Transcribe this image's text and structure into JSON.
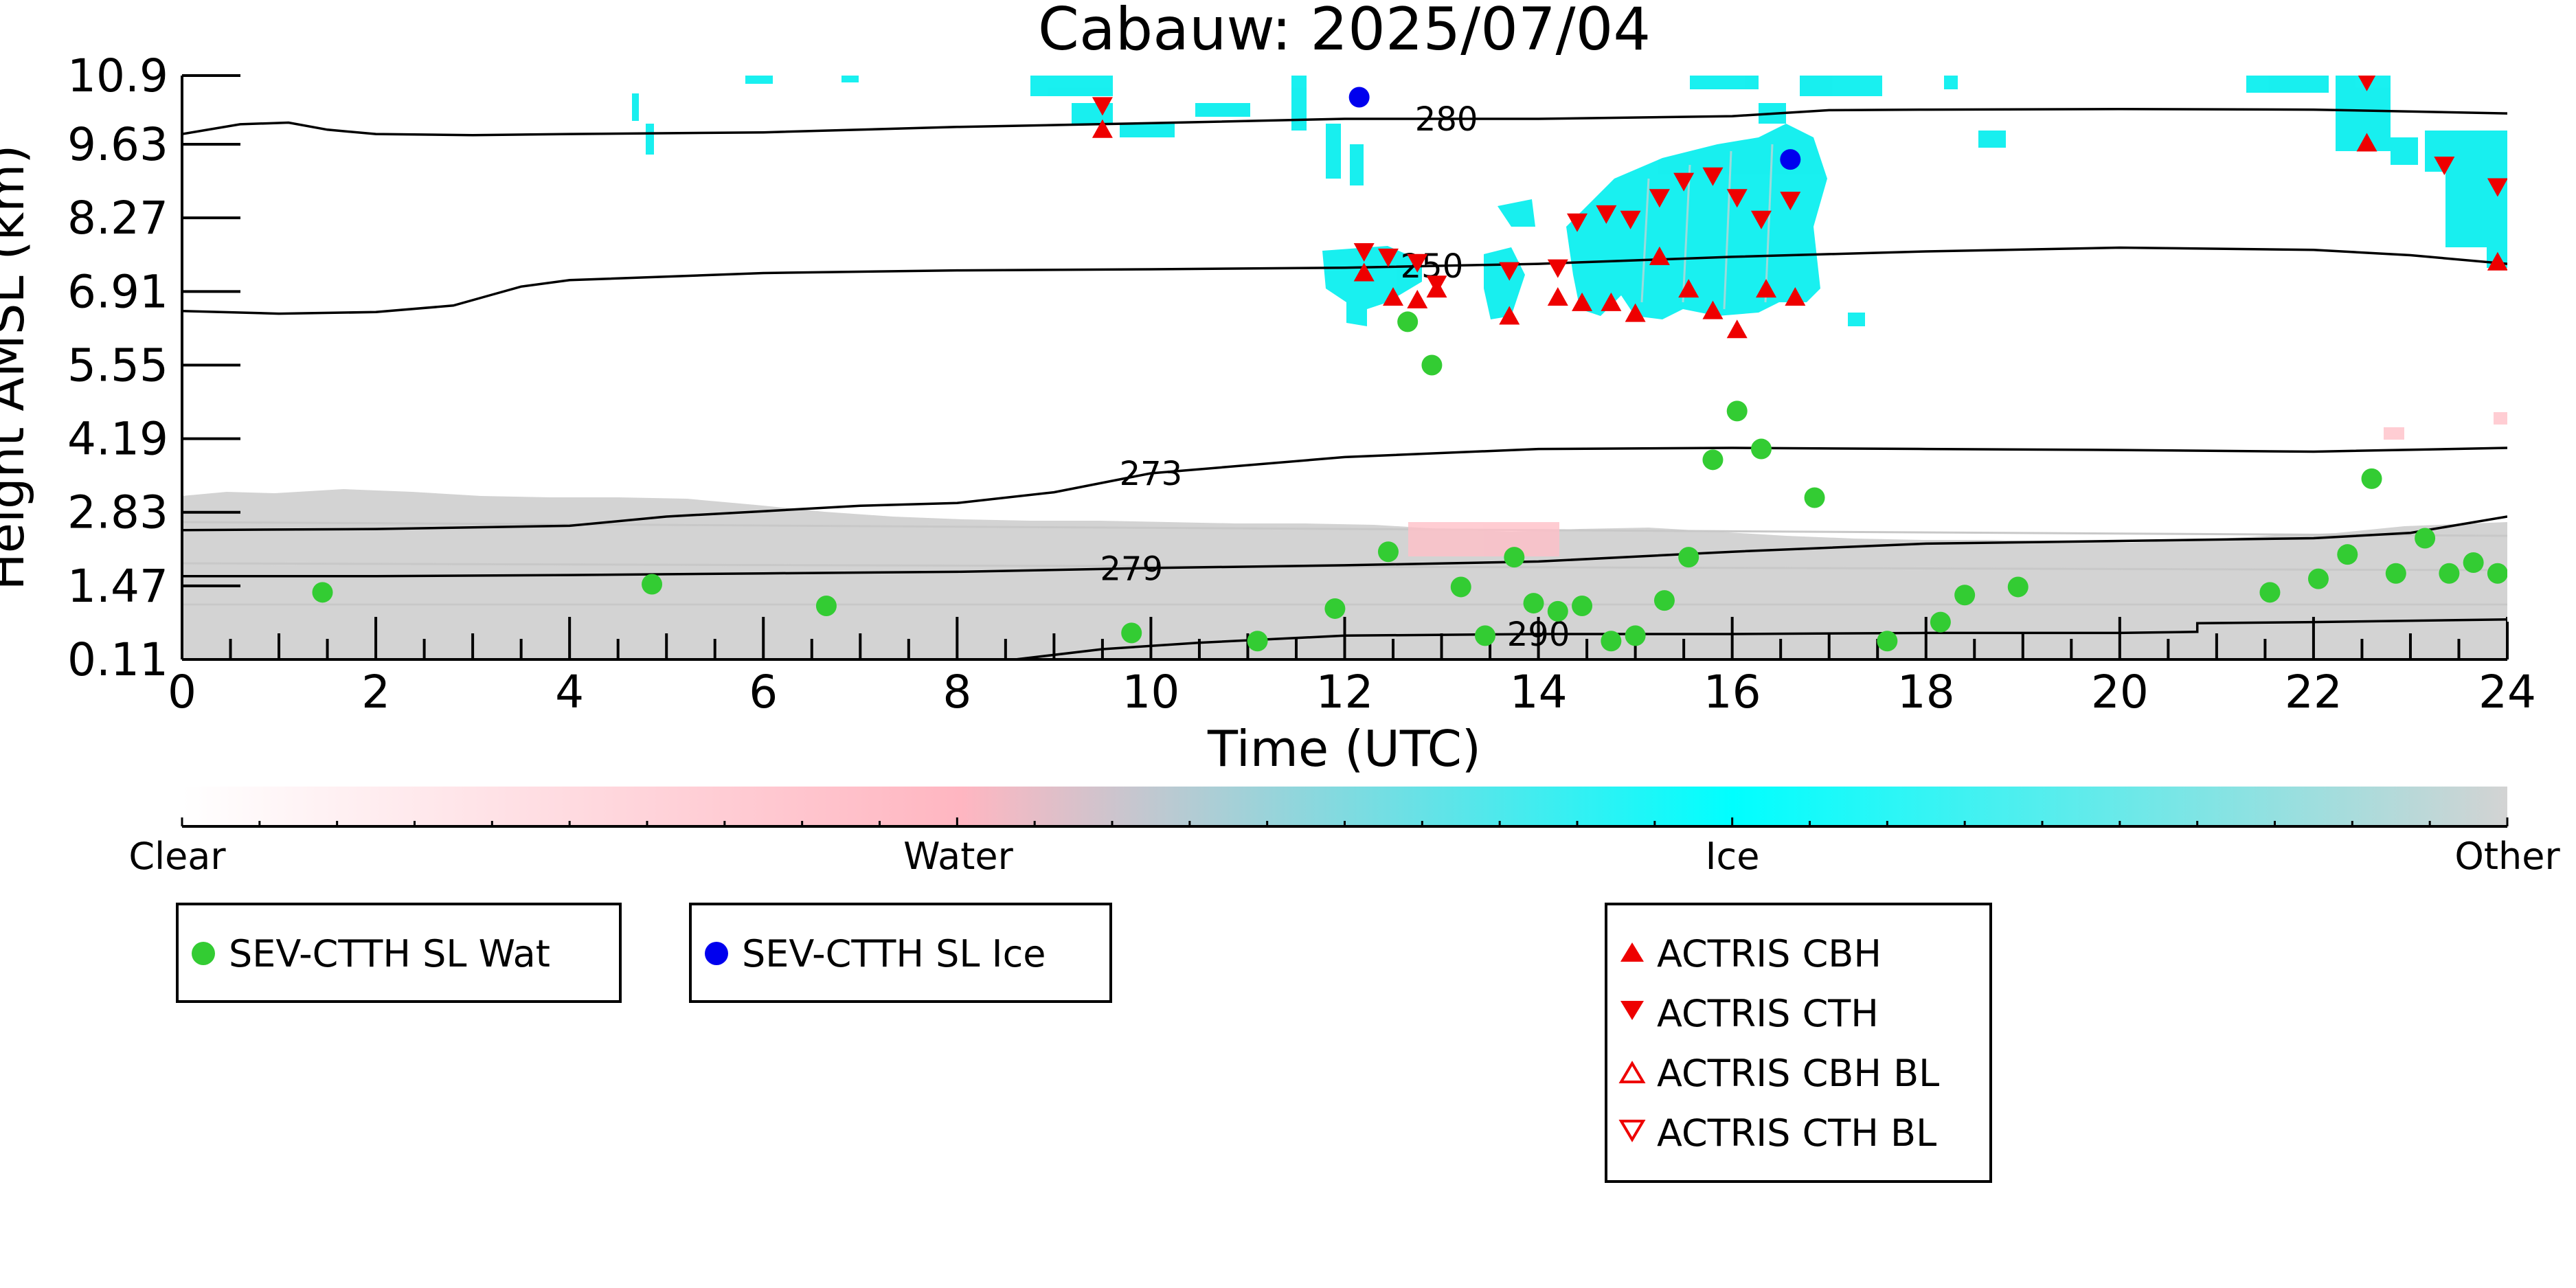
{
  "chart_data": {
    "type": "scatter",
    "title": "Cabauw: 2025/07/04",
    "xlabel": "Time (UTC)",
    "ylabel": "Height AMSL (km)",
    "xlim": [
      0,
      24
    ],
    "ylim": [
      0.11,
      10.9
    ],
    "x_ticks": [
      "0",
      "2",
      "4",
      "6",
      "8",
      "10",
      "12",
      "14",
      "16",
      "18",
      "20",
      "22",
      "24"
    ],
    "y_ticks": [
      "0.11",
      "1.47",
      "2.83",
      "4.19",
      "5.55",
      "6.91",
      "8.27",
      "9.63",
      "10.9"
    ],
    "colorbar": {
      "labels": [
        "Clear",
        "Water",
        "Ice",
        "Other"
      ],
      "colors": [
        "#ffffff",
        "#ffb6c1",
        "#00ffff",
        "#d3d3d3"
      ]
    },
    "contours": [
      {
        "label": "280",
        "x": [
          0,
          0.6,
          1.1,
          1.5,
          2,
          3,
          4,
          6,
          8,
          10,
          12,
          14,
          16,
          17,
          18,
          20,
          22,
          24
        ],
        "y": [
          9.82,
          10.0,
          10.03,
          9.9,
          9.82,
          9.8,
          9.82,
          9.85,
          9.95,
          10.02,
          10.1,
          10.1,
          10.15,
          10.26,
          10.27,
          10.28,
          10.27,
          10.2
        ]
      },
      {
        "label": "250",
        "x": [
          0,
          1,
          2,
          2.8,
          3.2,
          3.5,
          4,
          6,
          8,
          10,
          12,
          14,
          16,
          18,
          20,
          22,
          23,
          24
        ],
        "y": [
          6.55,
          6.5,
          6.53,
          6.65,
          6.85,
          7.0,
          7.12,
          7.25,
          7.3,
          7.32,
          7.35,
          7.42,
          7.55,
          7.65,
          7.72,
          7.68,
          7.58,
          7.42
        ]
      },
      {
        "label": "273",
        "x": [
          0,
          2,
          4,
          5,
          6,
          7,
          8,
          9,
          10,
          12,
          14,
          16,
          18,
          20,
          22,
          24
        ],
        "y": [
          2.5,
          2.52,
          2.58,
          2.75,
          2.85,
          2.95,
          3.0,
          3.2,
          3.55,
          3.85,
          4.0,
          4.02,
          4.0,
          3.98,
          3.95,
          4.02
        ]
      },
      {
        "label": "279",
        "x": [
          0,
          2,
          4,
          6,
          8,
          10,
          12,
          14,
          16,
          18,
          20,
          22,
          23,
          24
        ],
        "y": [
          1.65,
          1.65,
          1.67,
          1.7,
          1.73,
          1.8,
          1.85,
          1.92,
          2.1,
          2.25,
          2.3,
          2.35,
          2.45,
          2.75
        ]
      },
      {
        "label": "290",
        "x": [
          8.6,
          9.5,
          10.5,
          12,
          14,
          16,
          18,
          20,
          20.8,
          20.8,
          22,
          24
        ],
        "y": [
          0.11,
          0.3,
          0.42,
          0.55,
          0.58,
          0.58,
          0.6,
          0.6,
          0.62,
          0.78,
          0.8,
          0.85
        ]
      }
    ],
    "series": [
      {
        "name": "SEV-CTTH SL Wat",
        "marker": "circle",
        "color": "#33cc33",
        "x": [
          1.45,
          4.85,
          6.65,
          9.8,
          11.1,
          11.9,
          12.45,
          12.65,
          12.9,
          13.2,
          13.45,
          13.75,
          13.95,
          14.2,
          14.45,
          14.75,
          15.0,
          15.3,
          15.55,
          15.8,
          16.05,
          16.3,
          16.85,
          17.6,
          18.15,
          18.4,
          18.95,
          21.55,
          22.05,
          22.35,
          22.6,
          22.85,
          23.15,
          23.4,
          23.65,
          23.9
        ],
        "y": [
          1.35,
          1.5,
          1.1,
          0.6,
          0.45,
          1.05,
          2.1,
          6.35,
          5.55,
          1.45,
          0.55,
          2.0,
          1.15,
          1.0,
          1.1,
          0.45,
          0.55,
          1.2,
          2.0,
          3.8,
          4.7,
          4.0,
          3.1,
          0.45,
          0.8,
          1.3,
          1.45,
          1.35,
          1.6,
          2.05,
          3.45,
          1.7,
          2.35,
          1.7,
          1.9,
          1.7
        ]
      },
      {
        "name": "SEV-CTTH SL Ice",
        "marker": "circle",
        "color": "#0000ee",
        "x": [
          12.15,
          16.6
        ],
        "y": [
          10.5,
          9.35
        ]
      },
      {
        "name": "ACTRIS CBH",
        "marker": "triangle-up",
        "color": "#ee0000",
        "filled": true,
        "x": [
          9.5,
          12.2,
          12.5,
          12.75,
          12.95,
          13.7,
          14.2,
          14.45,
          14.75,
          15.0,
          15.25,
          15.55,
          15.8,
          16.05,
          16.35,
          16.65,
          22.55,
          23.9
        ],
        "y": [
          9.9,
          7.25,
          6.8,
          6.75,
          6.95,
          6.45,
          6.8,
          6.7,
          6.7,
          6.5,
          7.55,
          6.95,
          6.55,
          6.2,
          6.95,
          6.8,
          9.65,
          7.45
        ]
      },
      {
        "name": "ACTRIS CTH",
        "marker": "triangle-down",
        "color": "#ee0000",
        "filled": true,
        "x": [
          9.5,
          12.2,
          12.45,
          12.75,
          12.95,
          13.7,
          14.2,
          14.4,
          14.7,
          14.95,
          15.25,
          15.5,
          15.8,
          16.05,
          16.3,
          16.6,
          22.55,
          23.35,
          23.9
        ],
        "y": [
          10.35,
          7.65,
          7.55,
          7.45,
          7.05,
          7.3,
          7.35,
          8.2,
          8.35,
          8.25,
          8.65,
          8.95,
          9.05,
          8.65,
          8.25,
          8.6,
          10.8,
          9.25,
          8.85
        ]
      },
      {
        "name": "ACTRIS CBH BL",
        "marker": "triangle-up",
        "color": "#ee0000",
        "filled": false,
        "x": [],
        "y": []
      },
      {
        "name": "ACTRIS CTH BL",
        "marker": "triangle-down",
        "color": "#ee0000",
        "filled": false,
        "x": [],
        "y": []
      }
    ],
    "legend": [
      [
        "SEV-CTTH SL Wat"
      ],
      [
        "SEV-CTTH SL Ice"
      ],
      [
        "ACTRIS CBH",
        "ACTRIS CTH",
        "ACTRIS CBH BL",
        "ACTRIS CTH BL"
      ]
    ]
  }
}
